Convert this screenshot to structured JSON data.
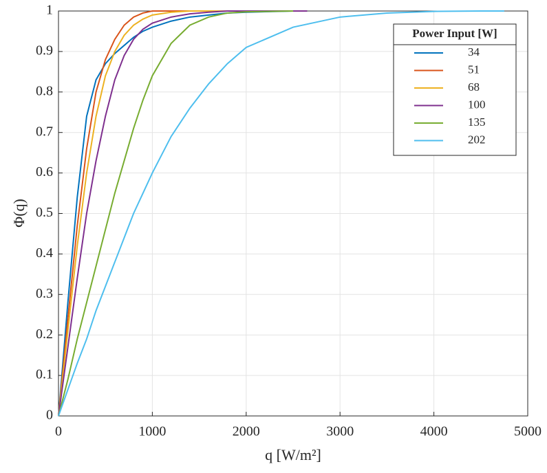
{
  "chart_data": {
    "type": "line",
    "xlabel": "q [W/m²]",
    "ylabel": "Φ(q)",
    "xlim": [
      0,
      5000
    ],
    "xticks": [
      0,
      1000,
      2000,
      3000,
      4000,
      5000
    ],
    "ylim": [
      0,
      1
    ],
    "yticks": [
      0,
      0.1,
      0.2,
      0.3,
      0.4,
      0.5,
      0.6,
      0.7,
      0.8,
      0.9,
      1
    ],
    "grid": true,
    "legend_title": "Power Input [W]",
    "legend_position": "upper right",
    "series": [
      {
        "name": "34",
        "color": "#0072BD",
        "x": [
          0,
          100,
          200,
          300,
          400,
          500,
          600,
          700,
          800,
          900,
          1000,
          1200,
          1400,
          1600,
          1800,
          2000,
          2500,
          2650
        ],
        "values": [
          0,
          0.28,
          0.54,
          0.74,
          0.83,
          0.87,
          0.895,
          0.915,
          0.935,
          0.95,
          0.96,
          0.975,
          0.985,
          0.99,
          0.995,
          0.997,
          1,
          1
        ]
      },
      {
        "name": "51",
        "color": "#D95319",
        "x": [
          0,
          100,
          200,
          300,
          400,
          500,
          600,
          700,
          800,
          900,
          1000,
          1200,
          1400,
          1600,
          1800
        ],
        "values": [
          0,
          0.24,
          0.47,
          0.66,
          0.8,
          0.88,
          0.93,
          0.965,
          0.985,
          0.995,
          1,
          1,
          1,
          1,
          1
        ]
      },
      {
        "name": "68",
        "color": "#EDB120",
        "x": [
          0,
          100,
          200,
          300,
          400,
          500,
          600,
          700,
          800,
          900,
          1000,
          1200,
          1400,
          1600,
          1800
        ],
        "values": [
          0,
          0.21,
          0.42,
          0.6,
          0.74,
          0.84,
          0.9,
          0.94,
          0.965,
          0.98,
          0.99,
          0.997,
          1,
          1,
          1
        ]
      },
      {
        "name": "100",
        "color": "#7E2F8E",
        "x": [
          0,
          100,
          200,
          300,
          400,
          500,
          600,
          700,
          800,
          900,
          1000,
          1200,
          1400,
          1600,
          1800,
          2000,
          2500,
          2650
        ],
        "values": [
          0,
          0.17,
          0.34,
          0.5,
          0.63,
          0.74,
          0.83,
          0.89,
          0.93,
          0.955,
          0.97,
          0.985,
          0.993,
          0.997,
          1,
          1,
          1,
          1
        ]
      },
      {
        "name": "135",
        "color": "#77AC30",
        "x": [
          0,
          100,
          200,
          300,
          400,
          500,
          600,
          700,
          800,
          900,
          1000,
          1200,
          1400,
          1600,
          1800,
          2000,
          2500
        ],
        "values": [
          0,
          0.09,
          0.19,
          0.28,
          0.37,
          0.46,
          0.55,
          0.63,
          0.71,
          0.78,
          0.84,
          0.92,
          0.965,
          0.985,
          0.995,
          0.998,
          1
        ]
      },
      {
        "name": "202",
        "color": "#4DBEEE",
        "x": [
          0,
          100,
          200,
          300,
          400,
          500,
          600,
          700,
          800,
          900,
          1000,
          1200,
          1400,
          1600,
          1800,
          2000,
          2500,
          3000,
          3500,
          4000,
          4500,
          4750
        ],
        "values": [
          0,
          0.065,
          0.13,
          0.19,
          0.26,
          0.32,
          0.38,
          0.44,
          0.5,
          0.55,
          0.6,
          0.69,
          0.76,
          0.82,
          0.87,
          0.91,
          0.96,
          0.985,
          0.995,
          0.999,
          1,
          1
        ]
      }
    ]
  }
}
